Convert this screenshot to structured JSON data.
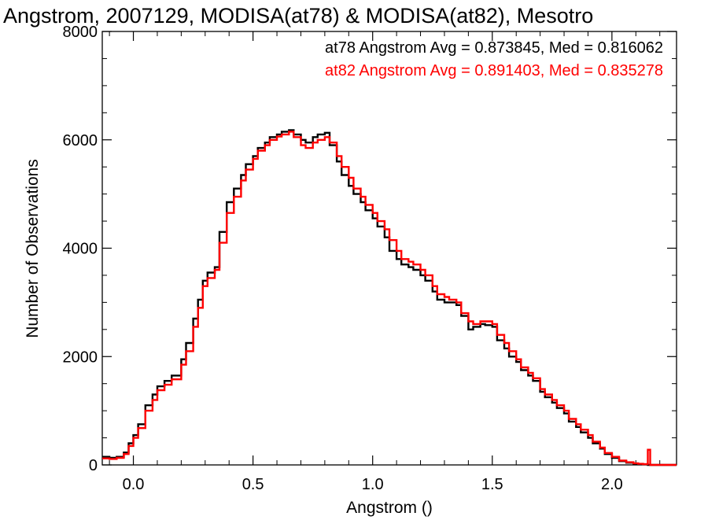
{
  "chart_data": {
    "type": "line",
    "title": "Angstrom, 2007129, MODISA(at78) & MODISA(at82), Mesotro",
    "xlabel": "Angstrom ()",
    "ylabel": "Number of Observations",
    "xlim": [
      -0.13,
      2.27
    ],
    "ylim": [
      0,
      8000
    ],
    "x_ticks": [
      0.0,
      0.5,
      1.0,
      1.5,
      2.0
    ],
    "x_tick_labels": [
      "0.0",
      "0.5",
      "1.0",
      "1.5",
      "2.0"
    ],
    "y_ticks": [
      0,
      2000,
      4000,
      6000,
      8000
    ],
    "y_tick_labels": [
      "0",
      "2000",
      "4000",
      "6000",
      "8000"
    ],
    "grid": false,
    "step": true,
    "annotations": [
      {
        "text": "at78 Angstrom Avg = 0.873845, Med = 0.816062",
        "color": "#000000"
      },
      {
        "text": "at82 Angstrom Avg = 0.891403, Med = 0.835278",
        "color": "#ff0000"
      }
    ],
    "series": [
      {
        "color": "#000000",
        "x": [
          -0.13,
          -0.1,
          -0.07,
          -0.04,
          -0.02,
          0.0,
          0.02,
          0.05,
          0.08,
          0.1,
          0.13,
          0.16,
          0.2,
          0.22,
          0.25,
          0.27,
          0.29,
          0.31,
          0.34,
          0.36,
          0.39,
          0.42,
          0.45,
          0.47,
          0.5,
          0.52,
          0.55,
          0.57,
          0.6,
          0.62,
          0.65,
          0.67,
          0.7,
          0.72,
          0.75,
          0.77,
          0.8,
          0.82,
          0.85,
          0.87,
          0.9,
          0.92,
          0.95,
          0.97,
          1.0,
          1.02,
          1.05,
          1.07,
          1.1,
          1.12,
          1.15,
          1.17,
          1.2,
          1.22,
          1.25,
          1.27,
          1.3,
          1.32,
          1.35,
          1.37,
          1.4,
          1.42,
          1.45,
          1.47,
          1.5,
          1.52,
          1.55,
          1.57,
          1.6,
          1.62,
          1.65,
          1.67,
          1.7,
          1.72,
          1.75,
          1.77,
          1.8,
          1.82,
          1.85,
          1.87,
          1.9,
          1.92,
          1.95,
          1.97,
          2.0,
          2.03,
          2.06,
          2.09,
          2.11,
          2.13,
          2.15,
          2.16,
          2.17,
          2.2,
          2.27
        ],
        "values": [
          150,
          130,
          150,
          230,
          400,
          550,
          750,
          1100,
          1300,
          1450,
          1550,
          1650,
          1950,
          2250,
          2700,
          3050,
          3400,
          3550,
          3650,
          4300,
          4850,
          5100,
          5350,
          5550,
          5700,
          5850,
          5950,
          6050,
          6100,
          6150,
          6180,
          6100,
          6000,
          5950,
          6050,
          6100,
          6130,
          5900,
          5600,
          5350,
          5150,
          5000,
          4850,
          4700,
          4550,
          4400,
          4200,
          3950,
          3800,
          3700,
          3650,
          3600,
          3500,
          3400,
          3200,
          3050,
          3000,
          3000,
          2950,
          2750,
          2500,
          2550,
          2600,
          2580,
          2550,
          2300,
          2150,
          2000,
          1900,
          1750,
          1650,
          1550,
          1350,
          1250,
          1150,
          1050,
          950,
          800,
          700,
          600,
          500,
          400,
          300,
          200,
          130,
          70,
          40,
          20,
          10,
          10,
          0,
          0,
          0,
          0,
          0
        ]
      },
      {
        "color": "#ff0000",
        "x": [
          -0.13,
          -0.1,
          -0.07,
          -0.04,
          -0.02,
          0.0,
          0.02,
          0.05,
          0.08,
          0.1,
          0.13,
          0.16,
          0.2,
          0.22,
          0.25,
          0.27,
          0.29,
          0.31,
          0.34,
          0.36,
          0.39,
          0.42,
          0.45,
          0.47,
          0.5,
          0.52,
          0.55,
          0.57,
          0.6,
          0.62,
          0.65,
          0.67,
          0.7,
          0.72,
          0.75,
          0.77,
          0.8,
          0.82,
          0.85,
          0.87,
          0.9,
          0.92,
          0.95,
          0.97,
          1.0,
          1.02,
          1.05,
          1.07,
          1.1,
          1.12,
          1.15,
          1.17,
          1.2,
          1.22,
          1.25,
          1.27,
          1.3,
          1.32,
          1.35,
          1.37,
          1.4,
          1.42,
          1.45,
          1.47,
          1.5,
          1.52,
          1.55,
          1.57,
          1.6,
          1.62,
          1.65,
          1.67,
          1.7,
          1.72,
          1.75,
          1.77,
          1.8,
          1.82,
          1.85,
          1.87,
          1.9,
          1.92,
          1.95,
          1.97,
          2.0,
          2.03,
          2.06,
          2.09,
          2.11,
          2.13,
          2.15,
          2.16,
          2.17,
          2.2,
          2.27
        ],
        "values": [
          120,
          110,
          130,
          200,
          350,
          500,
          680,
          1000,
          1200,
          1380,
          1480,
          1580,
          1850,
          2100,
          2550,
          2900,
          3300,
          3450,
          3600,
          4100,
          4650,
          4950,
          5250,
          5450,
          5650,
          5800,
          5900,
          6000,
          6060,
          6100,
          6150,
          6050,
          5900,
          5850,
          5950,
          6000,
          6050,
          5950,
          5700,
          5500,
          5300,
          5100,
          4950,
          4800,
          4650,
          4500,
          4350,
          4150,
          3950,
          3800,
          3750,
          3700,
          3600,
          3500,
          3300,
          3150,
          3100,
          3050,
          3000,
          2800,
          2650,
          2600,
          2650,
          2650,
          2600,
          2400,
          2250,
          2100,
          1950,
          1800,
          1700,
          1600,
          1400,
          1300,
          1200,
          1100,
          1000,
          850,
          750,
          650,
          550,
          430,
          320,
          220,
          150,
          80,
          50,
          30,
          20,
          15,
          280,
          0,
          0,
          0,
          0
        ]
      }
    ]
  }
}
